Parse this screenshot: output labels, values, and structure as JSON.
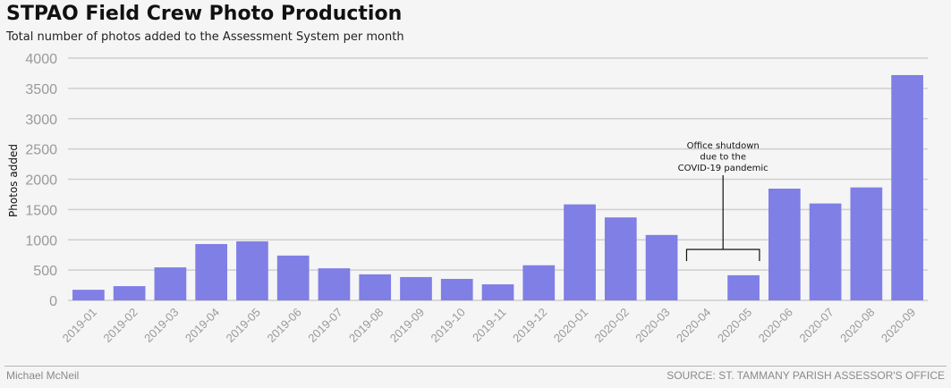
{
  "header": {
    "title": "STPAO Field Crew Photo Production",
    "subtitle": "Total number of photos added to the Assessment System per month"
  },
  "footer": {
    "credit": "Michael McNeil",
    "source": "SOURCE: ST. TAMMANY PARISH ASSESSOR'S OFFICE"
  },
  "colors": {
    "bar": "#7f7fe6",
    "grid": "#cfcfcf",
    "tick_text": "#9a9a9a",
    "background": "#f5f5f5"
  },
  "chart_data": {
    "type": "bar",
    "title": "STPAO Field Crew Photo Production",
    "subtitle": "Total number of photos added to the Assessment System per month",
    "xlabel": "",
    "ylabel": "Photos added",
    "ylim": [
      0,
      4000
    ],
    "yticks": [
      0,
      500,
      1000,
      1500,
      2000,
      2500,
      3000,
      3500,
      4000
    ],
    "grid": true,
    "categories": [
      "2019-01",
      "2019-02",
      "2019-03",
      "2019-04",
      "2019-05",
      "2019-06",
      "2019-07",
      "2019-08",
      "2019-09",
      "2019-10",
      "2019-11",
      "2019-12",
      "2020-01",
      "2020-02",
      "2020-03",
      "2020-04",
      "2020-05",
      "2020-06",
      "2020-07",
      "2020-08",
      "2020-09"
    ],
    "values": [
      175,
      235,
      545,
      930,
      975,
      740,
      530,
      430,
      385,
      355,
      265,
      580,
      1585,
      1370,
      1080,
      0,
      415,
      1845,
      1600,
      1865,
      3720
    ],
    "annotation": {
      "lines": [
        "Office shutdown",
        "due to the",
        "COVID-19 pandemic"
      ],
      "from_category": "2020-04",
      "to_category": "2020-05"
    }
  }
}
